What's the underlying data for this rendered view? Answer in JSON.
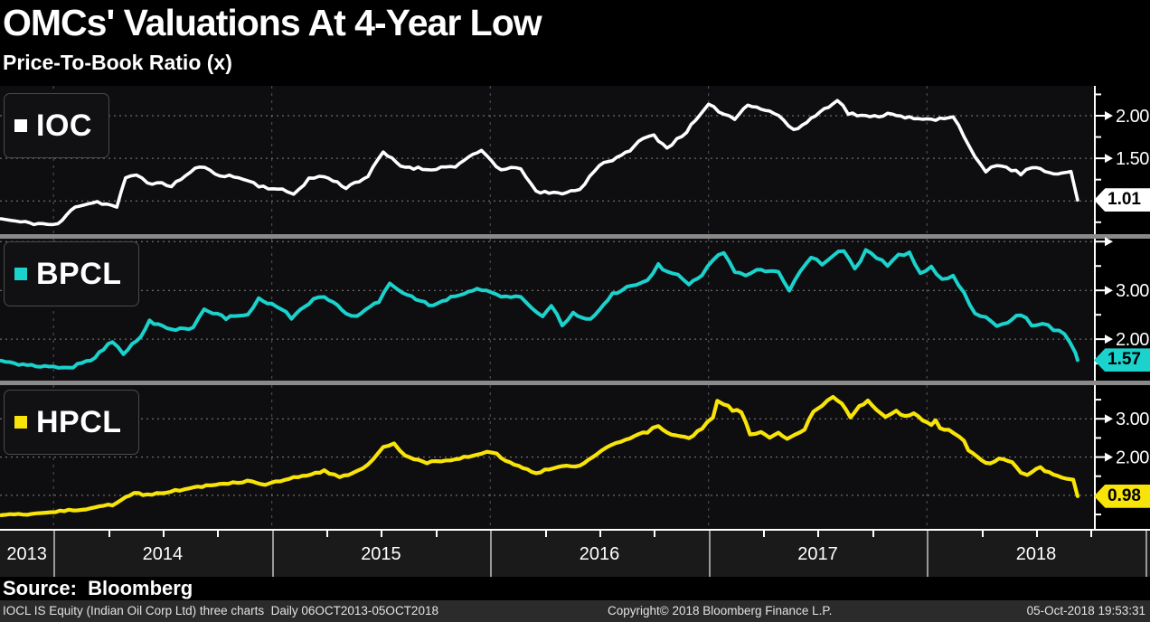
{
  "header": {
    "title": "OMCs' Valuations At 4-Year Low",
    "subtitle": "Price-To-Book Ratio (x)"
  },
  "source": {
    "label": "Source:  Bloomberg"
  },
  "footer": {
    "left": "IOCL IS Equity (Indian Oil Corp Ltd) three charts  Daily 06OCT2013-05OCT2018",
    "center": "Copyright© 2018 Bloomberg Finance L.P.",
    "right": "05-Oct-2018 19:53:31"
  },
  "colors": {
    "background": "#000000",
    "panel_background": "#0e0e10",
    "ioc_line": "#ffffff",
    "bpcl_line": "#1bd2cc",
    "hpcl_line": "#f8e408",
    "grid": "#8f8f8f",
    "year_grid": "#55555a",
    "separator": "#8a8a8a",
    "axis_strip": "#1a1a1a",
    "footer_strip": "#2b2b2b"
  },
  "x_axis": {
    "years": [
      "2013",
      "2014",
      "2015",
      "2016",
      "2017",
      "2018"
    ],
    "range_start": 2013.755,
    "range_end": 2018.765,
    "minor_tick_step": 0.25
  },
  "chart_data": [
    {
      "type": "line",
      "name": "IOC",
      "color": "#ffffff",
      "ylim": [
        0.61,
        2.35
      ],
      "gridlines": [
        2.0,
        1.5,
        1.0
      ],
      "ticks": [
        {
          "v": 2.0,
          "label": "2.00"
        },
        {
          "v": 1.5,
          "label": "1.50"
        }
      ],
      "minor_ticks": [
        2.25,
        1.75,
        1.25,
        0.75
      ],
      "last_value": 1.01,
      "last_label": "1.01",
      "points": [
        [
          2013.76,
          0.79
        ],
        [
          2013.85,
          0.75
        ],
        [
          2013.95,
          0.73
        ],
        [
          2014.02,
          0.72
        ],
        [
          2014.1,
          0.94
        ],
        [
          2014.2,
          0.99
        ],
        [
          2014.29,
          0.93
        ],
        [
          2014.33,
          1.26
        ],
        [
          2014.38,
          1.31
        ],
        [
          2014.43,
          1.22
        ],
        [
          2014.54,
          1.18
        ],
        [
          2014.67,
          1.41
        ],
        [
          2014.74,
          1.32
        ],
        [
          2014.87,
          1.26
        ],
        [
          2014.94,
          1.18
        ],
        [
          2015.07,
          1.11
        ],
        [
          2015.1,
          1.08
        ],
        [
          2015.17,
          1.26
        ],
        [
          2015.24,
          1.29
        ],
        [
          2015.34,
          1.16
        ],
        [
          2015.44,
          1.29
        ],
        [
          2015.51,
          1.57
        ],
        [
          2015.59,
          1.41
        ],
        [
          2015.71,
          1.37
        ],
        [
          2015.84,
          1.41
        ],
        [
          2015.96,
          1.59
        ],
        [
          2016.05,
          1.36
        ],
        [
          2016.14,
          1.39
        ],
        [
          2016.21,
          1.1
        ],
        [
          2016.31,
          1.09
        ],
        [
          2016.41,
          1.13
        ],
        [
          2016.5,
          1.43
        ],
        [
          2016.6,
          1.52
        ],
        [
          2016.7,
          1.73
        ],
        [
          2016.75,
          1.77
        ],
        [
          2016.81,
          1.62
        ],
        [
          2016.9,
          1.82
        ],
        [
          2017.0,
          2.12
        ],
        [
          2017.07,
          2.03
        ],
        [
          2017.12,
          1.96
        ],
        [
          2017.18,
          2.14
        ],
        [
          2017.32,
          2.01
        ],
        [
          2017.39,
          1.82
        ],
        [
          2017.45,
          1.93
        ],
        [
          2017.59,
          2.19
        ],
        [
          2017.64,
          2.03
        ],
        [
          2017.74,
          1.98
        ],
        [
          2017.84,
          2.03
        ],
        [
          2017.94,
          1.96
        ],
        [
          2018.04,
          1.95
        ],
        [
          2018.12,
          2.0
        ],
        [
          2018.17,
          1.77
        ],
        [
          2018.22,
          1.5
        ],
        [
          2018.27,
          1.34
        ],
        [
          2018.32,
          1.43
        ],
        [
          2018.43,
          1.32
        ],
        [
          2018.48,
          1.39
        ],
        [
          2018.58,
          1.32
        ],
        [
          2018.66,
          1.36
        ],
        [
          2018.69,
          1.01
        ]
      ]
    },
    {
      "type": "line",
      "name": "BPCL",
      "color": "#1bd2cc",
      "ylim": [
        1.15,
        4.06
      ],
      "gridlines": [
        4.0,
        3.0,
        2.0
      ],
      "ticks": [
        {
          "v": 4.0,
          "label": ""
        },
        {
          "v": 3.0,
          "label": "3.00"
        },
        {
          "v": 2.0,
          "label": "2.00"
        }
      ],
      "minor_ticks": [
        3.5,
        2.5,
        1.5
      ],
      "last_value": 1.57,
      "last_label": "1.57",
      "points": [
        [
          2013.76,
          1.56
        ],
        [
          2013.86,
          1.47
        ],
        [
          2014.0,
          1.44
        ],
        [
          2014.07,
          1.41
        ],
        [
          2014.17,
          1.56
        ],
        [
          2014.27,
          1.96
        ],
        [
          2014.32,
          1.71
        ],
        [
          2014.4,
          2.06
        ],
        [
          2014.44,
          2.36
        ],
        [
          2014.54,
          2.18
        ],
        [
          2014.64,
          2.24
        ],
        [
          2014.69,
          2.61
        ],
        [
          2014.79,
          2.43
        ],
        [
          2014.89,
          2.52
        ],
        [
          2014.94,
          2.83
        ],
        [
          2015.04,
          2.64
        ],
        [
          2015.09,
          2.43
        ],
        [
          2015.19,
          2.8
        ],
        [
          2015.24,
          2.86
        ],
        [
          2015.34,
          2.55
        ],
        [
          2015.39,
          2.46
        ],
        [
          2015.49,
          2.77
        ],
        [
          2015.54,
          3.14
        ],
        [
          2015.64,
          2.86
        ],
        [
          2015.74,
          2.68
        ],
        [
          2015.84,
          2.89
        ],
        [
          2015.94,
          3.05
        ],
        [
          2016.05,
          2.89
        ],
        [
          2016.14,
          2.86
        ],
        [
          2016.19,
          2.61
        ],
        [
          2016.24,
          2.46
        ],
        [
          2016.28,
          2.68
        ],
        [
          2016.33,
          2.3
        ],
        [
          2016.38,
          2.52
        ],
        [
          2016.46,
          2.4
        ],
        [
          2016.56,
          2.92
        ],
        [
          2016.67,
          3.14
        ],
        [
          2016.72,
          3.2
        ],
        [
          2016.77,
          3.54
        ],
        [
          2016.81,
          3.36
        ],
        [
          2016.86,
          3.3
        ],
        [
          2016.91,
          3.11
        ],
        [
          2016.97,
          3.3
        ],
        [
          2017.02,
          3.64
        ],
        [
          2017.07,
          3.76
        ],
        [
          2017.12,
          3.39
        ],
        [
          2017.17,
          3.3
        ],
        [
          2017.22,
          3.42
        ],
        [
          2017.32,
          3.36
        ],
        [
          2017.37,
          2.98
        ],
        [
          2017.42,
          3.39
        ],
        [
          2017.47,
          3.7
        ],
        [
          2017.52,
          3.54
        ],
        [
          2017.57,
          3.73
        ],
        [
          2017.62,
          3.82
        ],
        [
          2017.67,
          3.42
        ],
        [
          2017.72,
          3.82
        ],
        [
          2017.77,
          3.67
        ],
        [
          2017.82,
          3.52
        ],
        [
          2017.87,
          3.73
        ],
        [
          2017.92,
          3.76
        ],
        [
          2017.97,
          3.36
        ],
        [
          2018.02,
          3.48
        ],
        [
          2018.07,
          3.23
        ],
        [
          2018.12,
          3.3
        ],
        [
          2018.17,
          2.95
        ],
        [
          2018.22,
          2.52
        ],
        [
          2018.27,
          2.43
        ],
        [
          2018.32,
          2.24
        ],
        [
          2018.37,
          2.36
        ],
        [
          2018.43,
          2.52
        ],
        [
          2018.48,
          2.3
        ],
        [
          2018.53,
          2.33
        ],
        [
          2018.58,
          2.21
        ],
        [
          2018.63,
          2.11
        ],
        [
          2018.68,
          1.7
        ],
        [
          2018.69,
          1.57
        ]
      ]
    },
    {
      "type": "line",
      "name": "HPCL",
      "color": "#f8e408",
      "ylim": [
        0.1,
        3.88
      ],
      "gridlines": [
        3.0,
        2.0,
        1.0
      ],
      "ticks": [
        {
          "v": 3.0,
          "label": "3.00"
        },
        {
          "v": 2.0,
          "label": "2.00"
        }
      ],
      "minor_ticks": [
        3.5,
        2.5,
        1.5,
        0.5
      ],
      "last_value": 0.98,
      "last_label": "0.98",
      "points": [
        [
          2013.76,
          0.48
        ],
        [
          2013.9,
          0.52
        ],
        [
          2014.03,
          0.6
        ],
        [
          2014.17,
          0.64
        ],
        [
          2014.27,
          0.76
        ],
        [
          2014.37,
          1.08
        ],
        [
          2014.43,
          1.0
        ],
        [
          2014.6,
          1.16
        ],
        [
          2014.7,
          1.24
        ],
        [
          2014.8,
          1.31
        ],
        [
          2014.91,
          1.39
        ],
        [
          2014.97,
          1.27
        ],
        [
          2015.04,
          1.39
        ],
        [
          2015.1,
          1.47
        ],
        [
          2015.24,
          1.63
        ],
        [
          2015.31,
          1.47
        ],
        [
          2015.37,
          1.59
        ],
        [
          2015.44,
          1.79
        ],
        [
          2015.51,
          2.26
        ],
        [
          2015.56,
          2.38
        ],
        [
          2015.61,
          2.02
        ],
        [
          2015.71,
          1.86
        ],
        [
          2015.84,
          1.94
        ],
        [
          2015.96,
          2.1
        ],
        [
          2016.01,
          2.14
        ],
        [
          2016.11,
          1.79
        ],
        [
          2016.21,
          1.59
        ],
        [
          2016.31,
          1.75
        ],
        [
          2016.41,
          1.75
        ],
        [
          2016.51,
          2.18
        ],
        [
          2016.62,
          2.46
        ],
        [
          2016.72,
          2.66
        ],
        [
          2016.77,
          2.82
        ],
        [
          2016.81,
          2.62
        ],
        [
          2016.91,
          2.5
        ],
        [
          2016.97,
          2.74
        ],
        [
          2017.02,
          3.05
        ],
        [
          2017.04,
          3.45
        ],
        [
          2017.07,
          3.4
        ],
        [
          2017.11,
          3.23
        ],
        [
          2017.15,
          3.19
        ],
        [
          2017.19,
          2.61
        ],
        [
          2017.24,
          2.66
        ],
        [
          2017.28,
          2.53
        ],
        [
          2017.32,
          2.66
        ],
        [
          2017.36,
          2.45
        ],
        [
          2017.4,
          2.61
        ],
        [
          2017.44,
          2.74
        ],
        [
          2017.48,
          3.19
        ],
        [
          2017.52,
          3.35
        ],
        [
          2017.57,
          3.56
        ],
        [
          2017.61,
          3.43
        ],
        [
          2017.65,
          3.02
        ],
        [
          2017.69,
          3.31
        ],
        [
          2017.73,
          3.48
        ],
        [
          2017.77,
          3.23
        ],
        [
          2017.81,
          3.07
        ],
        [
          2017.86,
          3.19
        ],
        [
          2017.9,
          3.07
        ],
        [
          2017.94,
          3.15
        ],
        [
          2017.98,
          2.98
        ],
        [
          2018.02,
          2.86
        ],
        [
          2018.04,
          2.94
        ],
        [
          2018.06,
          2.74
        ],
        [
          2018.1,
          2.7
        ],
        [
          2018.15,
          2.53
        ],
        [
          2018.17,
          2.41
        ],
        [
          2018.19,
          2.16
        ],
        [
          2018.23,
          2.04
        ],
        [
          2018.27,
          1.84
        ],
        [
          2018.31,
          1.88
        ],
        [
          2018.33,
          1.96
        ],
        [
          2018.35,
          1.92
        ],
        [
          2018.39,
          1.88
        ],
        [
          2018.43,
          1.59
        ],
        [
          2018.46,
          1.51
        ],
        [
          2018.48,
          1.63
        ],
        [
          2018.52,
          1.71
        ],
        [
          2018.56,
          1.59
        ],
        [
          2018.6,
          1.51
        ],
        [
          2018.64,
          1.43
        ],
        [
          2018.67,
          1.39
        ],
        [
          2018.69,
          0.98
        ]
      ]
    }
  ]
}
